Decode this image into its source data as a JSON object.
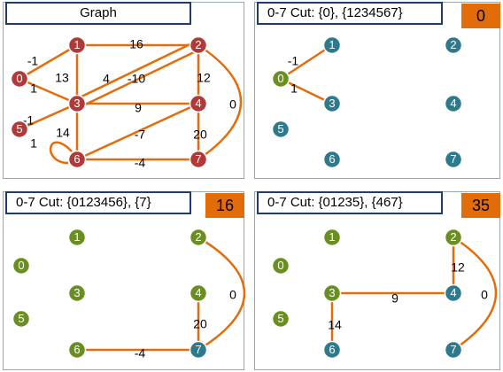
{
  "colors": {
    "edge": "#e46c0a",
    "node_red": "#b03a3a",
    "node_green": "#6b8e23",
    "node_blue": "#2e7a8c",
    "node_text": "#ffffff",
    "score_bg": "#e36c0a",
    "title_border": "#1f3d6b"
  },
  "panels": [
    {
      "title": "Graph",
      "score": "",
      "nodes": [
        {
          "id": "0",
          "label": "0",
          "color": "red"
        },
        {
          "id": "1",
          "label": "1",
          "color": "red"
        },
        {
          "id": "2",
          "label": "2",
          "color": "red"
        },
        {
          "id": "3",
          "label": "3",
          "color": "red"
        },
        {
          "id": "4",
          "label": "4",
          "color": "red"
        },
        {
          "id": "5",
          "label": "5",
          "color": "red"
        },
        {
          "id": "6",
          "label": "6",
          "color": "red"
        },
        {
          "id": "7",
          "label": "7",
          "color": "red"
        }
      ],
      "edges": [
        {
          "from": "0",
          "to": "1",
          "weight": "-1"
        },
        {
          "from": "0",
          "to": "3",
          "weight": "1"
        },
        {
          "from": "1",
          "to": "2",
          "weight": "16"
        },
        {
          "from": "1",
          "to": "3",
          "weight": "13"
        },
        {
          "from": "3",
          "to": "2",
          "weight": "4"
        },
        {
          "from": "3",
          "to": "2",
          "weight": "-10"
        },
        {
          "from": "2",
          "to": "4",
          "weight": "12"
        },
        {
          "from": "2",
          "to": "7",
          "weight": "0"
        },
        {
          "from": "3",
          "to": "4",
          "weight": "9"
        },
        {
          "from": "5",
          "to": "3",
          "weight": "-1"
        },
        {
          "from": "3",
          "to": "6",
          "weight": "14"
        },
        {
          "from": "6",
          "to": "4",
          "weight": "-7"
        },
        {
          "from": "4",
          "to": "7",
          "weight": "20"
        },
        {
          "from": "6",
          "to": "7",
          "weight": "-4"
        },
        {
          "from": "6",
          "to": "6",
          "weight": "1"
        }
      ]
    },
    {
      "title": "0-7 Cut: {0}, {1234567}",
      "score": "0",
      "nodes": [
        {
          "id": "0",
          "label": "0",
          "color": "green"
        },
        {
          "id": "1",
          "label": "1",
          "color": "blue"
        },
        {
          "id": "2",
          "label": "2",
          "color": "blue"
        },
        {
          "id": "3",
          "label": "3",
          "color": "blue"
        },
        {
          "id": "4",
          "label": "4",
          "color": "blue"
        },
        {
          "id": "5",
          "label": "5",
          "color": "blue"
        },
        {
          "id": "6",
          "label": "6",
          "color": "blue"
        },
        {
          "id": "7",
          "label": "7",
          "color": "blue"
        }
      ],
      "edges": [
        {
          "from": "0",
          "to": "1",
          "weight": "-1"
        },
        {
          "from": "0",
          "to": "3",
          "weight": "1"
        }
      ]
    },
    {
      "title": "0-7 Cut: {0123456}, {7}",
      "score": "16",
      "nodes": [
        {
          "id": "0",
          "label": "0",
          "color": "green"
        },
        {
          "id": "1",
          "label": "1",
          "color": "green"
        },
        {
          "id": "2",
          "label": "2",
          "color": "green"
        },
        {
          "id": "3",
          "label": "3",
          "color": "green"
        },
        {
          "id": "4",
          "label": "4",
          "color": "green"
        },
        {
          "id": "5",
          "label": "5",
          "color": "green"
        },
        {
          "id": "6",
          "label": "6",
          "color": "green"
        },
        {
          "id": "7",
          "label": "7",
          "color": "blue"
        }
      ],
      "edges": [
        {
          "from": "2",
          "to": "7",
          "weight": "0"
        },
        {
          "from": "4",
          "to": "7",
          "weight": "20"
        },
        {
          "from": "6",
          "to": "7",
          "weight": "-4"
        }
      ]
    },
    {
      "title": "0-7 Cut: {01235}, {467}",
      "score": "35",
      "nodes": [
        {
          "id": "0",
          "label": "0",
          "color": "green"
        },
        {
          "id": "1",
          "label": "1",
          "color": "green"
        },
        {
          "id": "2",
          "label": "2",
          "color": "green"
        },
        {
          "id": "3",
          "label": "3",
          "color": "green"
        },
        {
          "id": "4",
          "label": "4",
          "color": "blue"
        },
        {
          "id": "5",
          "label": "5",
          "color": "green"
        },
        {
          "id": "6",
          "label": "6",
          "color": "blue"
        },
        {
          "id": "7",
          "label": "7",
          "color": "blue"
        }
      ],
      "edges": [
        {
          "from": "2",
          "to": "4",
          "weight": "12"
        },
        {
          "from": "2",
          "to": "7",
          "weight": "0"
        },
        {
          "from": "3",
          "to": "4",
          "weight": "9"
        },
        {
          "from": "3",
          "to": "6",
          "weight": "14"
        }
      ]
    }
  ]
}
